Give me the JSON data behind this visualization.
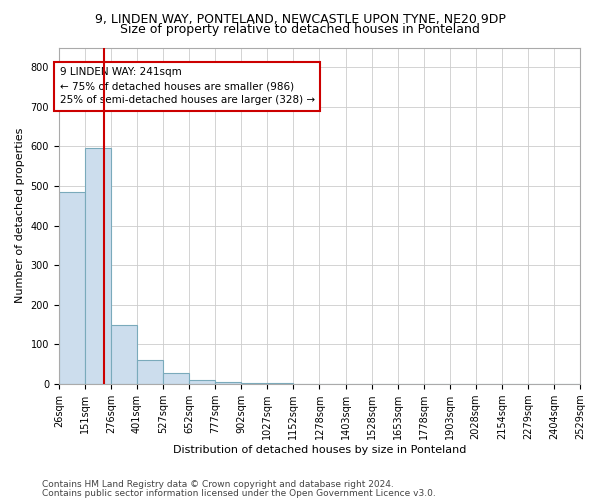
{
  "title1": "9, LINDEN WAY, PONTELAND, NEWCASTLE UPON TYNE, NE20 9DP",
  "title2": "Size of property relative to detached houses in Ponteland",
  "xlabel": "Distribution of detached houses by size in Ponteland",
  "ylabel": "Number of detached properties",
  "bar_edges": [
    26,
    151,
    276,
    401,
    527,
    652,
    777,
    902,
    1027,
    1152,
    1278,
    1403,
    1528,
    1653,
    1778,
    1903,
    2028,
    2154,
    2279,
    2404,
    2529
  ],
  "bar_heights": [
    484,
    596,
    148,
    62,
    27,
    10,
    5,
    2,
    2,
    1,
    1,
    0,
    0,
    0,
    0,
    0,
    0,
    0,
    0,
    0
  ],
  "bar_facecolor": "#ccdded",
  "bar_edgecolor": "#7aaabb",
  "vline_x": 241,
  "vline_color": "#cc0000",
  "annotation_line1": "9 LINDEN WAY: 241sqm",
  "annotation_line2": "← 75% of detached houses are smaller (986)",
  "annotation_line3": "25% of semi-detached houses are larger (328) →",
  "annotation_box_color": "#cc0000",
  "ylim": [
    0,
    850
  ],
  "yticks": [
    0,
    100,
    200,
    300,
    400,
    500,
    600,
    700,
    800
  ],
  "footnote1": "Contains HM Land Registry data © Crown copyright and database right 2024.",
  "footnote2": "Contains public sector information licensed under the Open Government Licence v3.0.",
  "title1_fontsize": 9,
  "title2_fontsize": 9,
  "tick_fontsize": 7,
  "ylabel_fontsize": 8,
  "xlabel_fontsize": 8,
  "annotation_fontsize": 7.5,
  "footnote_fontsize": 6.5
}
